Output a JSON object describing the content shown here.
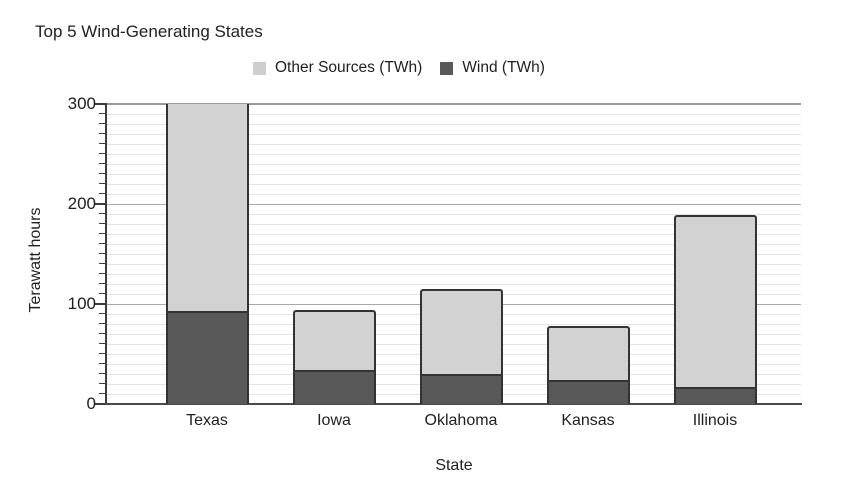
{
  "title": "Top 5 Wind-Generating States",
  "legend": {
    "items": [
      {
        "label": "Other Sources (TWh)",
        "color": "#cecece"
      },
      {
        "label": "Wind (TWh)",
        "color": "#595959"
      }
    ]
  },
  "chart_data": {
    "type": "bar",
    "stacked": true,
    "title": "Top 5 Wind-Generating States",
    "xlabel": "State",
    "ylabel": "Terawatt hours",
    "categories": [
      "Texas",
      "Iowa",
      "Oklahoma",
      "Kansas",
      "Illinois"
    ],
    "series": [
      {
        "name": "Wind (TWh)",
        "color": "#595959",
        "values": [
          93,
          34,
          30,
          24,
          17
        ]
      },
      {
        "name": "Other Sources (TWh)",
        "color": "#d2d2d2",
        "values": [
          207,
          60,
          85,
          54,
          172
        ]
      }
    ],
    "totals_visible": [
      300,
      94,
      115,
      78,
      189
    ],
    "note": "Texas bar is clipped at the y-axis maximum of 300",
    "ylim": [
      0,
      300
    ],
    "y_ticks": [
      0,
      100,
      200,
      300
    ],
    "minor_grid_step": 10,
    "grid": true,
    "legend_position": "top-center",
    "bar_outline_color": "#333333"
  }
}
